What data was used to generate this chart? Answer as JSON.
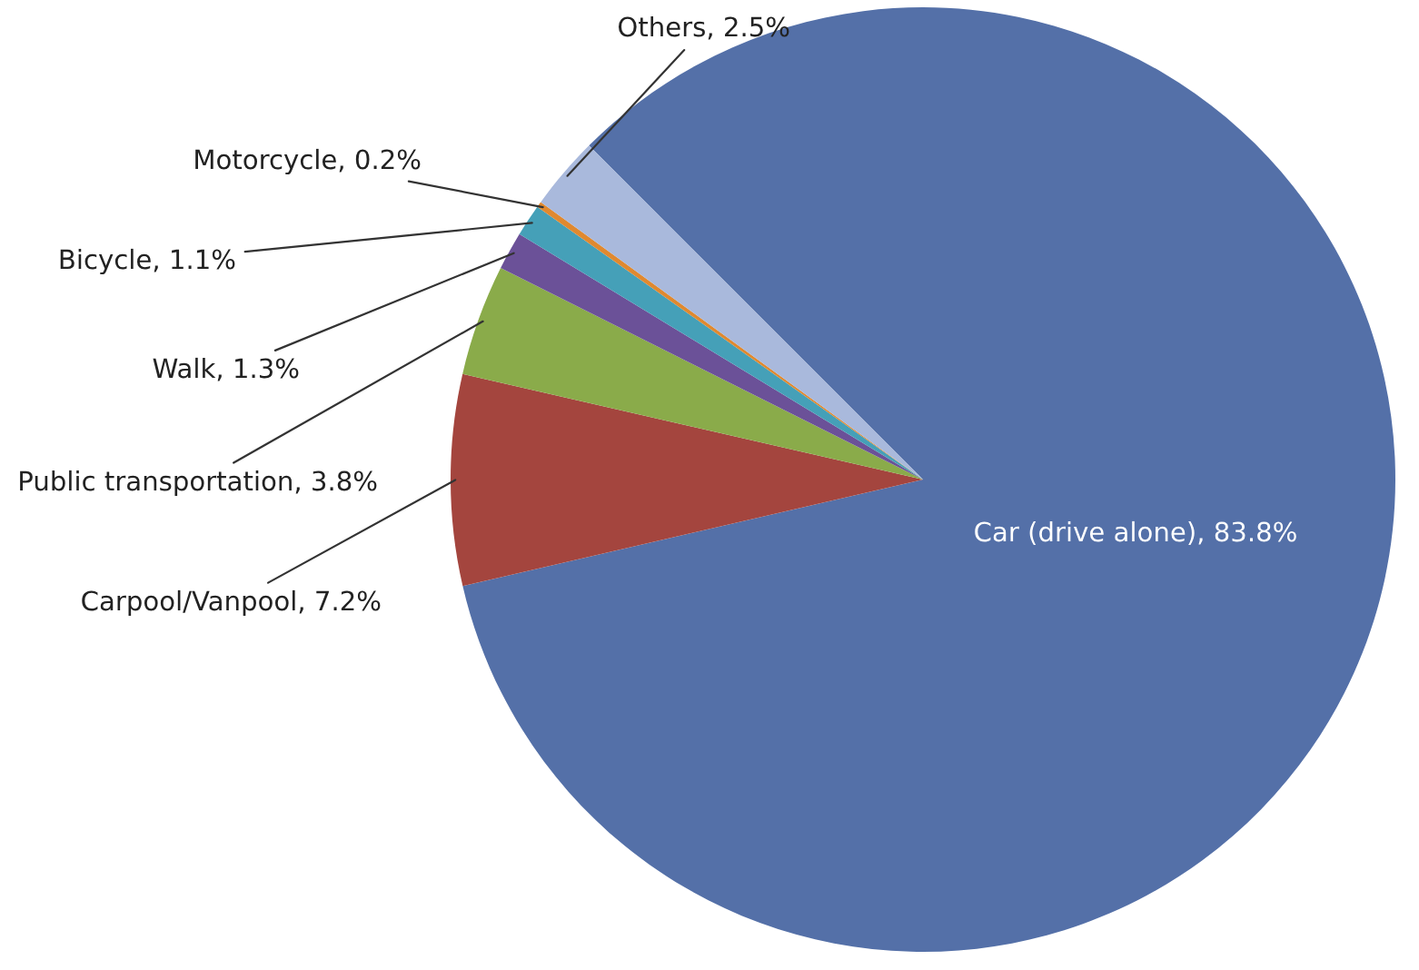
{
  "chart_data": {
    "type": "pie",
    "categories": [
      "Car (drive alone)",
      "Carpool/Vanpool",
      "Public transportation",
      "Walk",
      "Bicycle",
      "Motorcycle",
      "Others"
    ],
    "values": [
      83.8,
      7.2,
      3.8,
      1.3,
      1.1,
      0.2,
      2.5
    ],
    "value_labels": [
      "83.8%",
      "7.2%",
      "3.8%",
      "1.3%",
      "1.1%",
      "0.2%",
      "2.5%"
    ],
    "colors": [
      "#5470a8",
      "#a4453e",
      "#8aab4a",
      "#6b5198",
      "#45a0b8",
      "#e0892f",
      "#a9b9dc"
    ]
  }
}
